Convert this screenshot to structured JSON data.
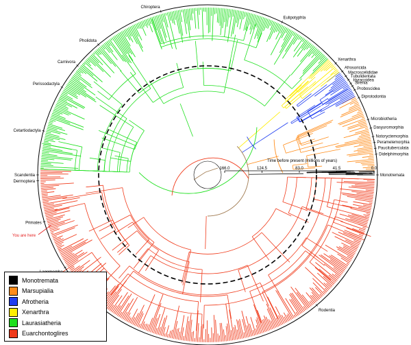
{
  "clades": [
    {
      "name": "Monotremata",
      "color": "#000000",
      "start": 0,
      "end": 1.5
    },
    {
      "name": "Marsupialia",
      "color": "#ff8c1a",
      "start": 1.5,
      "end": 28
    },
    {
      "name": "Afrotheria",
      "color": "#1f3df0",
      "start": 28,
      "end": 38
    },
    {
      "name": "Xenarthra",
      "color": "#ffee00",
      "start": 38,
      "end": 44
    },
    {
      "name": "Laurasiatheria",
      "color": "#1ee01e",
      "start": 44,
      "end": 178
    },
    {
      "name": "Euarchontoglires",
      "color": "#f03a1a",
      "start": 178,
      "end": 358.5
    }
  ],
  "legend": [
    "Monotremata",
    "Marsupialia",
    "Afrotheria",
    "Xenarthra",
    "Laurasiatheria",
    "Euarchontoglires"
  ],
  "labels": [
    {
      "text": "Chiroptera",
      "angle": 106
    },
    {
      "text": "Eulipotyphla",
      "angle": 64
    },
    {
      "text": "Xenarthra",
      "angle": 41
    },
    {
      "text": "Afrosoricida",
      "angle": 37.5
    },
    {
      "text": "Macroscelididae",
      "angle": 35.5
    },
    {
      "text": "Tubulidentata",
      "angle": 34
    },
    {
      "text": "Hyracoidea",
      "angle": 32.5
    },
    {
      "text": "Sirenia",
      "angle": 31.5
    },
    {
      "text": "Proboscidea",
      "angle": 30
    },
    {
      "text": "Diprotodontia",
      "angle": 27
    },
    {
      "text": "Microbiotheria",
      "angle": 19
    },
    {
      "text": "Dasyuromorphia",
      "angle": 16
    },
    {
      "text": "Notoryctemorphia",
      "angle": 13
    },
    {
      "text": "Peramelemorphia",
      "angle": 11
    },
    {
      "text": "Paucituberculata",
      "angle": 9
    },
    {
      "text": "Didelphimorphia",
      "angle": 7
    },
    {
      "text": "Monotremata",
      "angle": 0
    },
    {
      "text": "Rodentia",
      "angle": 310
    },
    {
      "text": "Lagomorpha",
      "angle": 213
    },
    {
      "text": "Primates",
      "angle": 196
    },
    {
      "text": "Dermoptera",
      "angle": 182
    },
    {
      "text": "Scandentia",
      "angle": 180
    },
    {
      "text": "Cetartiodactyla",
      "angle": 165
    },
    {
      "text": "Perissodactyla",
      "angle": 149
    },
    {
      "text": "Carnivora",
      "angle": 140
    },
    {
      "text": "Pholidota",
      "angle": 130
    }
  ],
  "you_are_here": "You are here",
  "axis": {
    "title": "Time before present (millions of years)",
    "ticks": [
      "166.0",
      "124.5",
      "83.0",
      "41.5",
      "0.0"
    ]
  }
}
